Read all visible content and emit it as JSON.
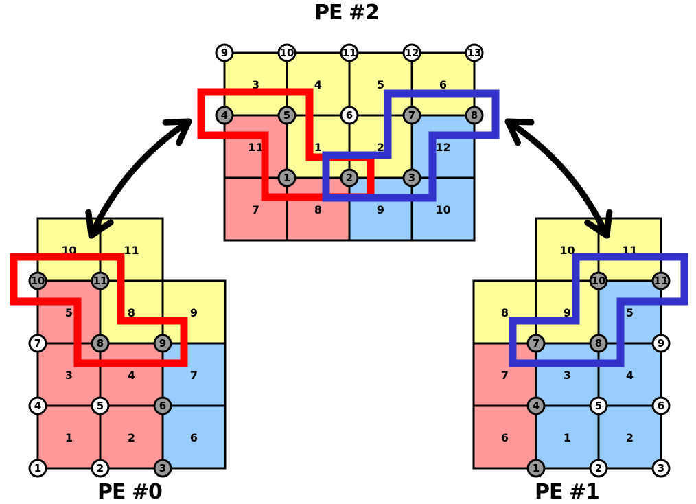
{
  "colors": {
    "yellow": "#ffff99",
    "pink": "#ff9999",
    "blue": "#99ccff",
    "red_outline": "#ff0000",
    "blue_outline": "#3333cc",
    "grid": "#000000",
    "node_white": "#ffffff",
    "node_gray": "#999999"
  },
  "pe2": {
    "title": "PE #2",
    "elements": [
      {
        "label": "3",
        "color": "yellow"
      },
      {
        "label": "4",
        "color": "yellow"
      },
      {
        "label": "5",
        "color": "yellow"
      },
      {
        "label": "6",
        "color": "yellow"
      },
      {
        "label": "11",
        "color": "pink"
      },
      {
        "label": "1",
        "color": "yellow"
      },
      {
        "label": "2",
        "color": "yellow"
      },
      {
        "label": "12",
        "color": "blue"
      },
      {
        "label": "7",
        "color": "pink"
      },
      {
        "label": "8",
        "color": "pink"
      },
      {
        "label": "9",
        "color": "blue"
      },
      {
        "label": "10",
        "color": "blue"
      }
    ],
    "nodes": [
      {
        "label": "9",
        "fill": "white"
      },
      {
        "label": "10",
        "fill": "white"
      },
      {
        "label": "11",
        "fill": "white"
      },
      {
        "label": "12",
        "fill": "white"
      },
      {
        "label": "13",
        "fill": "white"
      },
      {
        "label": "4",
        "fill": "gray"
      },
      {
        "label": "5",
        "fill": "gray"
      },
      {
        "label": "6",
        "fill": "white"
      },
      {
        "label": "7",
        "fill": "gray"
      },
      {
        "label": "8",
        "fill": "gray"
      },
      {
        "label": "1",
        "fill": "gray"
      },
      {
        "label": "2",
        "fill": "gray"
      },
      {
        "label": "3",
        "fill": "gray"
      }
    ]
  },
  "pe0": {
    "title": "PE #0",
    "elements": [
      {
        "label": "10",
        "color": "yellow"
      },
      {
        "label": "11",
        "color": "yellow"
      },
      {
        "label": "5",
        "color": "pink"
      },
      {
        "label": "8",
        "color": "yellow"
      },
      {
        "label": "9",
        "color": "yellow"
      },
      {
        "label": "3",
        "color": "pink"
      },
      {
        "label": "4",
        "color": "pink"
      },
      {
        "label": "7",
        "color": "blue"
      },
      {
        "label": "1",
        "color": "pink"
      },
      {
        "label": "2",
        "color": "pink"
      },
      {
        "label": "6",
        "color": "blue"
      }
    ],
    "nodes": [
      {
        "label": "10",
        "fill": "gray"
      },
      {
        "label": "11",
        "fill": "gray"
      },
      {
        "label": "7",
        "fill": "white"
      },
      {
        "label": "8",
        "fill": "gray"
      },
      {
        "label": "9",
        "fill": "gray"
      },
      {
        "label": "4",
        "fill": "white"
      },
      {
        "label": "5",
        "fill": "white"
      },
      {
        "label": "6",
        "fill": "gray"
      },
      {
        "label": "1",
        "fill": "white"
      },
      {
        "label": "2",
        "fill": "white"
      },
      {
        "label": "3",
        "fill": "gray"
      }
    ]
  },
  "pe1": {
    "title": "PE #1",
    "elements": [
      {
        "label": "10",
        "color": "yellow"
      },
      {
        "label": "11",
        "color": "yellow"
      },
      {
        "label": "8",
        "color": "yellow"
      },
      {
        "label": "9",
        "color": "yellow"
      },
      {
        "label": "5",
        "color": "blue"
      },
      {
        "label": "7",
        "color": "pink"
      },
      {
        "label": "3",
        "color": "blue"
      },
      {
        "label": "4",
        "color": "blue"
      },
      {
        "label": "6",
        "color": "pink"
      },
      {
        "label": "1",
        "color": "blue"
      },
      {
        "label": "2",
        "color": "blue"
      }
    ],
    "nodes": [
      {
        "label": "10",
        "fill": "gray"
      },
      {
        "label": "11",
        "fill": "gray"
      },
      {
        "label": "7",
        "fill": "gray"
      },
      {
        "label": "8",
        "fill": "gray"
      },
      {
        "label": "9",
        "fill": "white"
      },
      {
        "label": "4",
        "fill": "gray"
      },
      {
        "label": "5",
        "fill": "white"
      },
      {
        "label": "6",
        "fill": "white"
      },
      {
        "label": "1",
        "fill": "gray"
      },
      {
        "label": "2",
        "fill": "white"
      },
      {
        "label": "3",
        "fill": "white"
      }
    ]
  }
}
